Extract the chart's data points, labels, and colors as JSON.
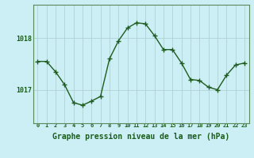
{
  "x": [
    0,
    1,
    2,
    3,
    4,
    5,
    6,
    7,
    8,
    9,
    10,
    11,
    12,
    13,
    14,
    15,
    16,
    17,
    18,
    19,
    20,
    21,
    22,
    23
  ],
  "y": [
    1017.55,
    1017.55,
    1017.35,
    1017.1,
    1016.75,
    1016.7,
    1016.78,
    1016.87,
    1017.6,
    1017.95,
    1018.2,
    1018.3,
    1018.28,
    1018.05,
    1017.78,
    1017.78,
    1017.52,
    1017.2,
    1017.18,
    1017.05,
    1017.0,
    1017.28,
    1017.48,
    1017.52
  ],
  "line_color": "#1e5c1e",
  "marker_color": "#1e5c1e",
  "bg_color": "#cceef5",
  "grid_color": "#aacccc",
  "xlabel": "Graphe pression niveau de la mer (hPa)",
  "xlabel_fontsize": 7,
  "tick_labels": [
    "0",
    "1",
    "2",
    "3",
    "4",
    "5",
    "6",
    "7",
    "8",
    "9",
    "10",
    "11",
    "12",
    "13",
    "14",
    "15",
    "16",
    "17",
    "18",
    "19",
    "20",
    "21",
    "22",
    "23"
  ],
  "yticks": [
    1017.0,
    1018.0
  ],
  "ylim": [
    1016.35,
    1018.65
  ],
  "xlim": [
    -0.5,
    23.5
  ],
  "figsize": [
    3.2,
    2.0
  ],
  "dpi": 100
}
